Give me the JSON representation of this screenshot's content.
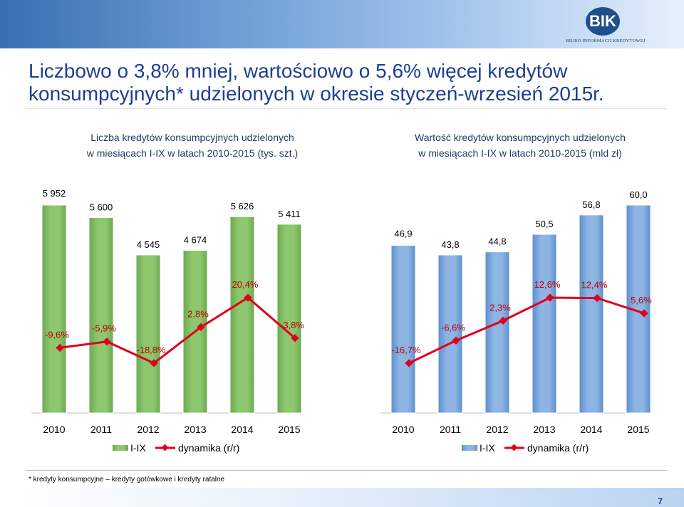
{
  "header": {
    "title": "Liczbowo o 3,8% mniej, wartościowo o 5,6% więcej kredytów konsumpcyjnych* udzielonych w okresie styczeń-wrzesień 2015r.",
    "logo_text": "BIK",
    "logo_subtext": "BIURO INFORMACJI KREDYTOWEJ"
  },
  "colors": {
    "green_bar": "#8dc86f",
    "blue_bar": "#8eb4e3",
    "line": "#e0001b",
    "title": "#1c3f94"
  },
  "chart_data": [
    {
      "type": "bar",
      "subtitle_line1": "Liczba kredytów konsumpcyjnych udzielonych",
      "subtitle_line2": "w miesiącach I-IX w latach 2010-2015 (tys. szt.)",
      "categories": [
        "2010",
        "2011",
        "2012",
        "2013",
        "2014",
        "2015"
      ],
      "series": [
        {
          "name": "I-IX",
          "values": [
            5952,
            5600,
            4545,
            4674,
            5626,
            5411
          ],
          "labels": [
            "5 952",
            "5 600",
            "4 545",
            "4 674",
            "5 626",
            "5 411"
          ]
        },
        {
          "name": "dynamika (r/r)",
          "type": "line",
          "values": [
            -9.6,
            -5.9,
            -18.8,
            2.8,
            20.4,
            -3.8
          ],
          "labels": [
            "-9,6%",
            "-5,9%",
            "-18,8%",
            "2,8%",
            "20,4%",
            "-3,8%"
          ]
        }
      ],
      "legend_position": "bottom"
    },
    {
      "type": "bar",
      "subtitle_line1": "Wartość kredytów konsumpcyjnych udzielonych",
      "subtitle_line2": "w miesiącach I-IX w latach 2010-2015 (mld zł)",
      "categories": [
        "2010",
        "2011",
        "2012",
        "2013",
        "2014",
        "2015"
      ],
      "series": [
        {
          "name": "I-IX",
          "values": [
            46.9,
            43.8,
            44.8,
            50.5,
            56.8,
            60.0
          ],
          "labels": [
            "46,9",
            "43,8",
            "44,8",
            "50,5",
            "56,8",
            "60,0"
          ]
        },
        {
          "name": "dynamika (r/r)",
          "type": "line",
          "values": [
            -16.7,
            -6.6,
            2.3,
            12.6,
            12.4,
            5.6
          ],
          "labels": [
            "-16,7%",
            "-6,6%",
            "2,3%",
            "12,6%",
            "12,4%",
            "5,6%"
          ]
        }
      ],
      "legend_position": "bottom"
    }
  ],
  "footnote": "* kredyty konsumpcyjne – kredyty gotówkowe i kredyty ratalne",
  "page_number": "7"
}
